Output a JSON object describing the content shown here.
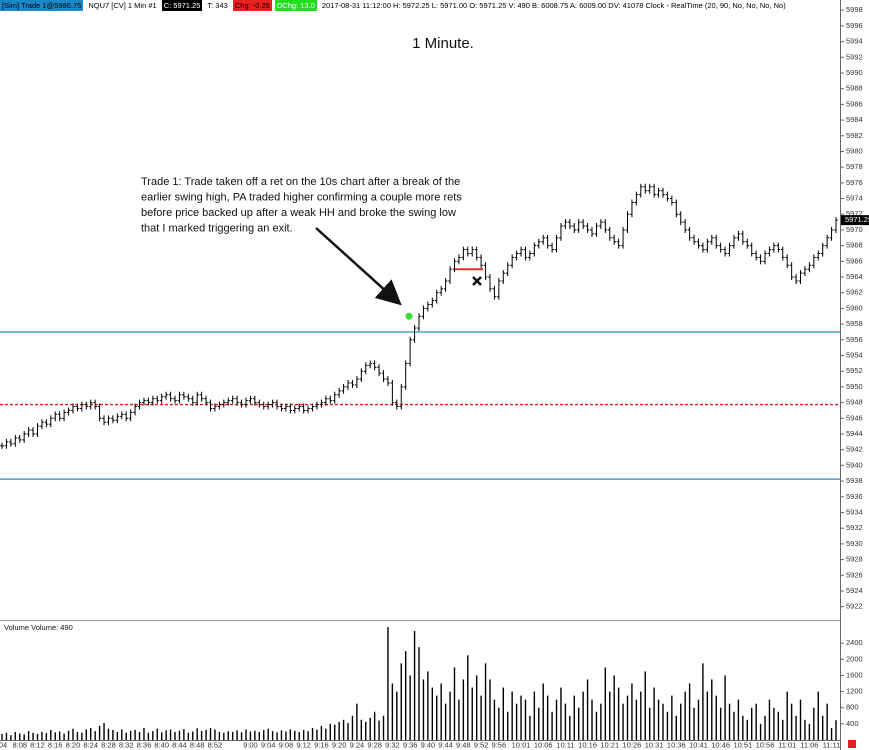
{
  "header": [
    {
      "text": "[Sim] Trade 1@5986.75",
      "bg": "#1a88c9",
      "color": "#000000"
    },
    {
      "text": "NQU7 [CV]  1 Min  #1",
      "bg": "#ffffff",
      "color": "#000000"
    },
    {
      "text": "C: 5971.25",
      "bg": "#000000",
      "color": "#ffffff"
    },
    {
      "text": "T: 343",
      "bg": "#ffffff",
      "color": "#000000"
    },
    {
      "text": "Chg: -0.25",
      "bg": "#e82020",
      "color": "#000000"
    },
    {
      "text": "DChg: 13.0",
      "bg": "#22dd22",
      "color": "#ffffff"
    },
    {
      "text": "2017-08-31 11:12:00  H: 5972.25  L: 5971.00  O: 5971.25  V: 490  B: 6008.75  A: 6009.00  DV: 41078  Clock - RealTime  (20, 90, No, No, No, No)",
      "bg": "#ffffff",
      "color": "#000000"
    }
  ],
  "chart_data": {
    "type": "ohlc-volume",
    "title": "1 Minute.",
    "note": [
      "Trade 1:  Trade taken off a ret on the 10s chart after a break of the",
      "earlier swing high, PA traded higher confirming a couple more rets",
      "before price backed up after a weak HH and broke the swing low",
      "that I marked triggering an exit."
    ],
    "categories": [
      ":04",
      null,
      null,
      null,
      "8:08",
      null,
      null,
      null,
      "8:12",
      null,
      null,
      null,
      "8:16",
      null,
      null,
      null,
      "8:20",
      null,
      null,
      null,
      "8:24",
      null,
      null,
      null,
      "8:28",
      null,
      null,
      null,
      "8:32",
      null,
      null,
      null,
      "8:36",
      null,
      null,
      null,
      "8:40",
      null,
      null,
      null,
      "8:44",
      null,
      null,
      null,
      "8:48",
      null,
      null,
      null,
      "8:52",
      null,
      null,
      null,
      null,
      null,
      null,
      null,
      "9:00",
      null,
      null,
      null,
      "9:04",
      null,
      null,
      null,
      "9:08",
      null,
      null,
      null,
      "9:12",
      null,
      null,
      null,
      "9:16",
      null,
      null,
      null,
      "9:20",
      null,
      null,
      null,
      "9:24",
      null,
      null,
      null,
      "9:28",
      null,
      null,
      null,
      "9:32",
      null,
      null,
      null,
      "9:36",
      null,
      null,
      null,
      "9:40",
      null,
      null,
      null,
      "9:44",
      null,
      null,
      null,
      "9:48",
      null,
      null,
      null,
      "9:52",
      null,
      null,
      null,
      "9:56",
      null,
      null,
      null,
      null,
      "10:01",
      null,
      null,
      null,
      null,
      "10:06",
      null,
      null,
      null,
      null,
      "10:11",
      null,
      null,
      null,
      null,
      "10:16",
      null,
      null,
      null,
      null,
      "10:21",
      null,
      null,
      null,
      null,
      "10:26",
      null,
      null,
      null,
      null,
      "10:31",
      null,
      null,
      null,
      null,
      "10:36",
      null,
      null,
      null,
      null,
      "10:41",
      null,
      null,
      null,
      null,
      "10:46",
      null,
      null,
      null,
      null,
      "10:51",
      null,
      null,
      null,
      null,
      "10:56",
      null,
      null,
      null,
      null,
      "11:01",
      null,
      null,
      null,
      null,
      "11:06",
      null,
      null,
      null,
      null,
      "11:11",
      null
    ],
    "series": [
      {
        "name": "NQU7",
        "color": "#000000",
        "values": [
          5942.5,
          5943,
          5942.75,
          5943.5,
          5943.25,
          5944,
          5944.5,
          5944,
          5945,
          5945.5,
          5945.25,
          5946,
          5946.5,
          5946,
          5946.75,
          5947,
          5947.5,
          5947.25,
          5947.75,
          5947.5,
          5948,
          5947.5,
          5946,
          5945.5,
          5946,
          5945.75,
          5946.25,
          5946.5,
          5946,
          5946.75,
          5947.5,
          5948,
          5948.25,
          5948,
          5948.5,
          5948.25,
          5948.75,
          5949,
          5948.5,
          5948.25,
          5949,
          5948.75,
          5948.5,
          5948,
          5949,
          5948.5,
          5948,
          5947.25,
          5947.5,
          5947.75,
          5948,
          5948.25,
          5948.5,
          5948,
          5947.75,
          5948.25,
          5948.5,
          5948,
          5947.75,
          5947.5,
          5947.75,
          5948,
          5947.5,
          5947.25,
          5947.5,
          5947,
          5947.25,
          5947.5,
          5947,
          5947.25,
          5947.5,
          5947.75,
          5948,
          5948.5,
          5948.25,
          5949,
          5949.5,
          5950,
          5950.5,
          5950.25,
          5951,
          5952,
          5952.75,
          5953,
          5952.5,
          5951.75,
          5951,
          5950.5,
          5948,
          5947.5,
          5950,
          5953,
          5956,
          5957.5,
          5959,
          5960,
          5960.5,
          5961,
          5962,
          5962.5,
          5963.5,
          5965,
          5966,
          5966.5,
          5967.5,
          5967,
          5967.5,
          5966.5,
          5965.5,
          5964,
          5962.5,
          5961.5,
          5963.5,
          5964.5,
          5965.5,
          5966.5,
          5967,
          5967.5,
          5966.5,
          5967,
          5968,
          5968.5,
          5969,
          5968,
          5967.5,
          5969,
          5970.5,
          5971,
          5970.5,
          5970,
          5971,
          5970.5,
          5970,
          5969.5,
          5970.5,
          5971,
          5970,
          5969,
          5968.5,
          5968,
          5970,
          5972,
          5973.5,
          5974.5,
          5975.5,
          5975,
          5975.5,
          5974.5,
          5975,
          5974.5,
          5974,
          5973.5,
          5972,
          5971,
          5970,
          5969,
          5968.5,
          5968,
          5967.5,
          5968.5,
          5969,
          5968,
          5967.5,
          5967,
          5968,
          5969,
          5969.5,
          5968.5,
          5968,
          5967,
          5966.5,
          5966,
          5967,
          5967.5,
          5968,
          5967.5,
          5966.5,
          5965.5,
          5964,
          5963.5,
          5964.5,
          5965,
          5965.5,
          5966.5,
          5967,
          5968,
          5969,
          5970,
          5971.25
        ]
      }
    ],
    "ylim": [
      5920.3,
      5999.3
    ],
    "yticks": [
      5922,
      5924,
      5926,
      5928,
      5930,
      5932,
      5934,
      5936,
      5938,
      5940,
      5942,
      5944,
      5946,
      5948,
      5950,
      5952,
      5954,
      5956,
      5958,
      5960,
      5962,
      5964,
      5966,
      5968,
      5970,
      5972,
      5974,
      5976,
      5978,
      5980,
      5982,
      5984,
      5986,
      5988,
      5990,
      5992,
      5994,
      5996,
      5998
    ],
    "last_price": 5971.25,
    "levels": [
      {
        "value": 5957,
        "color": "#2e8bc0",
        "dashed": false
      },
      {
        "value": 5947.75,
        "color": "#e02020",
        "dashed": true
      },
      {
        "value": 5938.25,
        "color": "#2e8bc0",
        "dashed": false
      }
    ],
    "entry_marker": {
      "value": 5959,
      "color": "#33e033"
    },
    "stop_line": {
      "value": 5965,
      "color": "#e03030"
    },
    "exit_marker": {
      "value": 5963.5,
      "color": "#111111"
    },
    "volume": {
      "title": "Volume  Volume: 490",
      "color": "#000000",
      "ylim": [
        0,
        2850
      ],
      "yticks": [
        400,
        800,
        1200,
        1600,
        2000,
        2400
      ],
      "values": [
        150,
        180,
        120,
        200,
        160,
        140,
        220,
        180,
        150,
        200,
        170,
        250,
        190,
        210,
        160,
        230,
        280,
        200,
        180,
        260,
        300,
        220,
        350,
        420,
        280,
        250,
        200,
        260,
        180,
        230,
        250,
        200,
        300,
        180,
        220,
        280,
        190,
        240,
        260,
        200,
        230,
        270,
        180,
        210,
        290,
        220,
        250,
        300,
        260,
        200,
        180,
        220,
        200,
        240,
        190,
        260,
        210,
        230,
        200,
        250,
        280,
        220,
        190,
        240,
        210,
        260,
        230,
        200,
        250,
        220,
        300,
        260,
        350,
        280,
        400,
        380,
        450,
        500,
        420,
        600,
        900,
        500,
        450,
        550,
        700,
        480,
        600,
        2800,
        1400,
        1200,
        1900,
        2200,
        1600,
        2700,
        2300,
        1500,
        1700,
        1300,
        1100,
        1400,
        900,
        1200,
        1800,
        1000,
        1500,
        2100,
        1300,
        1600,
        1100,
        1900,
        1500,
        1000,
        800,
        1300,
        700,
        1200,
        900,
        1100,
        1000,
        600,
        1200,
        800,
        1400,
        1100,
        700,
        1000,
        1300,
        900,
        600,
        1100,
        800,
        1200,
        1500,
        1000,
        700,
        900,
        1800,
        1200,
        1600,
        1300,
        900,
        1100,
        1400,
        1000,
        1200,
        1700,
        800,
        1300,
        1000,
        900,
        700,
        1100,
        600,
        900,
        1200,
        1400,
        800,
        1000,
        1900,
        1200,
        1500,
        1100,
        800,
        1600,
        900,
        700,
        1000,
        600,
        500,
        800,
        900,
        400,
        600,
        1000,
        800,
        700,
        500,
        1200,
        900,
        600,
        1000,
        500,
        400,
        800,
        1200,
        600,
        900,
        300,
        490
      ]
    }
  }
}
